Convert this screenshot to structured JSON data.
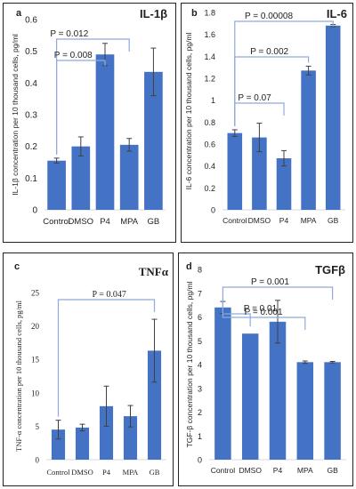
{
  "colors": {
    "bar": "#4472C4",
    "bracket": "#8FAADC",
    "axis": "#D9D9D9",
    "text": "#222222",
    "error": "#404040"
  },
  "chart_data": [
    {
      "panel": "a",
      "type": "bar",
      "title": "IL-1β",
      "categories": [
        "Control",
        "DMSO",
        "P4",
        "MPA",
        "GB"
      ],
      "values": [
        0.155,
        0.2,
        0.49,
        0.205,
        0.435
      ],
      "errors": [
        0.008,
        0.03,
        0.035,
        0.02,
        0.075
      ],
      "ylabel": "IL-1β concentration per 10 thousand cells, pg/ml",
      "ylim": [
        0,
        0.6
      ],
      "yticks": [
        "0",
        "0.1",
        "0.2",
        "0.3",
        "0.4",
        "0.5",
        "0.6"
      ],
      "grid": false,
      "annotations": [
        {
          "text": "P = 0.012",
          "from": 0,
          "to": 3
        },
        {
          "text": "P = 0.008",
          "from": 0,
          "to": 2
        }
      ]
    },
    {
      "panel": "b",
      "type": "bar",
      "title": "IL-6",
      "categories": [
        "Control",
        "DMSO",
        "P4",
        "MPA",
        "GB"
      ],
      "values": [
        0.7,
        0.66,
        0.47,
        1.27,
        1.68
      ],
      "errors": [
        0.03,
        0.13,
        0.07,
        0.04,
        0.01
      ],
      "ylabel": "IL-6 concentration per 10 thousand cells, pg/ml",
      "ylim": [
        0,
        1.8
      ],
      "yticks": [
        "0",
        "0.2",
        "0.4",
        "0.6",
        "0.8",
        "1",
        "1.2",
        "1.4",
        "1.6",
        "1.8"
      ],
      "grid": false,
      "annotations": [
        {
          "text": "P = 0.00008",
          "from": 0,
          "to": 4
        },
        {
          "text": "P = 0.002",
          "from": 0,
          "to": 3
        },
        {
          "text": "P = 0.07",
          "from": 0,
          "to": 2
        }
      ]
    },
    {
      "panel": "c",
      "type": "bar",
      "title": "TNFα",
      "categories": [
        "Control",
        "DMSO",
        "P4",
        "MPA",
        "GB"
      ],
      "values": [
        4.5,
        4.8,
        8.0,
        6.5,
        16.3
      ],
      "errors": [
        1.4,
        0.5,
        3.0,
        1.6,
        4.7
      ],
      "ylabel": "TNF-α concentration per 10 thousand cells, pg/ml",
      "ylim": [
        0,
        25
      ],
      "yticks": [
        "0",
        "5",
        "10",
        "15",
        "20",
        "25"
      ],
      "grid": false,
      "annotations": [
        {
          "text": "P = 0.047",
          "from": 0,
          "to": 4
        }
      ]
    },
    {
      "panel": "d",
      "type": "bar",
      "title": "TGFβ",
      "categories": [
        "Control",
        "DMSO",
        "P4",
        "MPA",
        "GB"
      ],
      "values": [
        6.4,
        5.3,
        5.8,
        4.1,
        4.1
      ],
      "errors": [
        0.25,
        0.0,
        0.9,
        0.05,
        0.03
      ],
      "ylabel": "TGF-β concentration per 10 thousand cells, pg/ml",
      "ylim": [
        0,
        8
      ],
      "yticks": [
        "0",
        "1",
        "2",
        "3",
        "4",
        "5",
        "6",
        "7",
        "8"
      ],
      "grid": false,
      "annotations": [
        {
          "text": "P = 0.001",
          "from": 0,
          "to": 4
        },
        {
          "text": "P = 0.01",
          "from": 0,
          "to": 1
        },
        {
          "text": "P = 0.001",
          "from": 0,
          "to": 3
        }
      ]
    }
  ]
}
